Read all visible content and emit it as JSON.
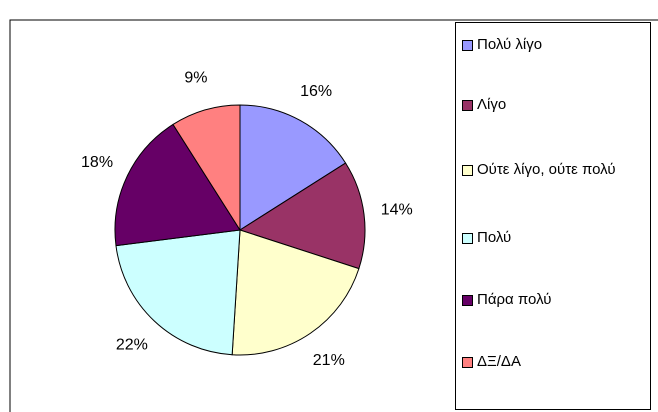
{
  "chart_data": {
    "type": "pie",
    "categories": [
      "Πολύ λίγο",
      "Λίγο",
      "Ούτε λίγο, ούτε πολύ",
      "Πολύ",
      "Πάρα πολύ",
      "ΔΞ/ΔΑ"
    ],
    "values": [
      16,
      14,
      21,
      22,
      18,
      9
    ],
    "value_labels": [
      "16%",
      "14%",
      "21%",
      "22%",
      "18%",
      "9%"
    ],
    "colors": [
      "#9999FF",
      "#993366",
      "#FFFFCC",
      "#CCFFFF",
      "#660066",
      "#FF8080"
    ],
    "legend": "right"
  }
}
